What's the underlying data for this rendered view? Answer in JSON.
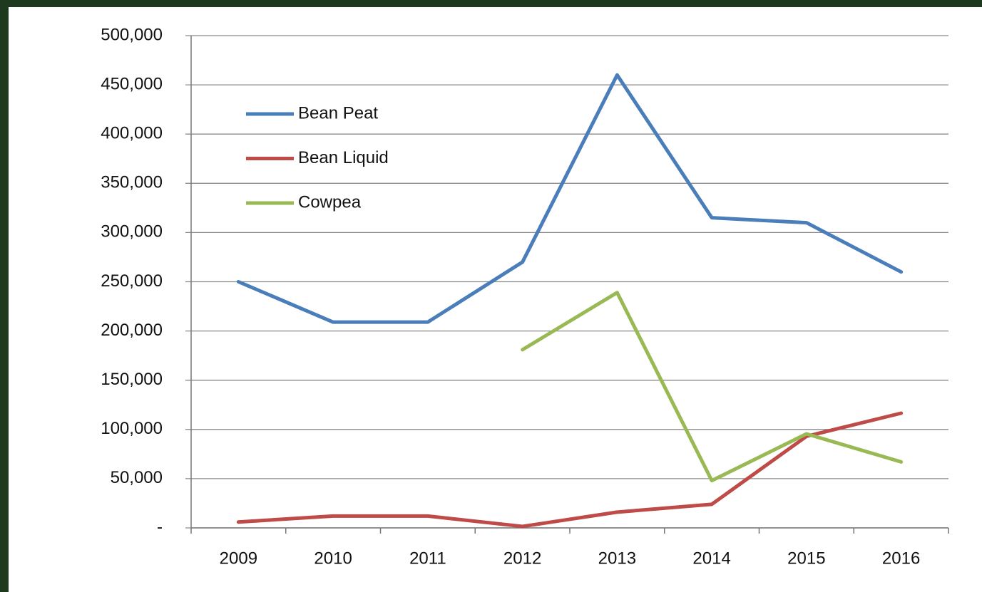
{
  "chart_data": {
    "type": "line",
    "categories": [
      "2009",
      "2010",
      "2011",
      "2012",
      "2013",
      "2014",
      "2015",
      "2016"
    ],
    "series": [
      {
        "name": "Bean Peat",
        "color": "#4a7ebb",
        "values": [
          250000,
          209000,
          209000,
          270000,
          460000,
          315000,
          310000,
          260000
        ]
      },
      {
        "name": "Bean Liquid",
        "color": "#be4b48",
        "values": [
          6000,
          12000,
          12000,
          1500,
          16000,
          24000,
          93000,
          116500
        ]
      },
      {
        "name": "Cowpea",
        "color": "#98b954",
        "values": [
          null,
          null,
          null,
          181000,
          239000,
          48000,
          95500,
          67000
        ]
      }
    ],
    "ylim": [
      0,
      500000
    ],
    "yticks": [
      {
        "value": 0,
        "label": "-"
      },
      {
        "value": 50000,
        "label": "50,000"
      },
      {
        "value": 100000,
        "label": "100,000"
      },
      {
        "value": 150000,
        "label": "150,000"
      },
      {
        "value": 200000,
        "label": "200,000"
      },
      {
        "value": 250000,
        "label": "250,000"
      },
      {
        "value": 300000,
        "label": "300,000"
      },
      {
        "value": 350000,
        "label": "350,000"
      },
      {
        "value": 400000,
        "label": "400,000"
      },
      {
        "value": 450000,
        "label": "450,000"
      },
      {
        "value": 500000,
        "label": "500,000"
      }
    ],
    "grid": true,
    "legend": "upper left"
  }
}
